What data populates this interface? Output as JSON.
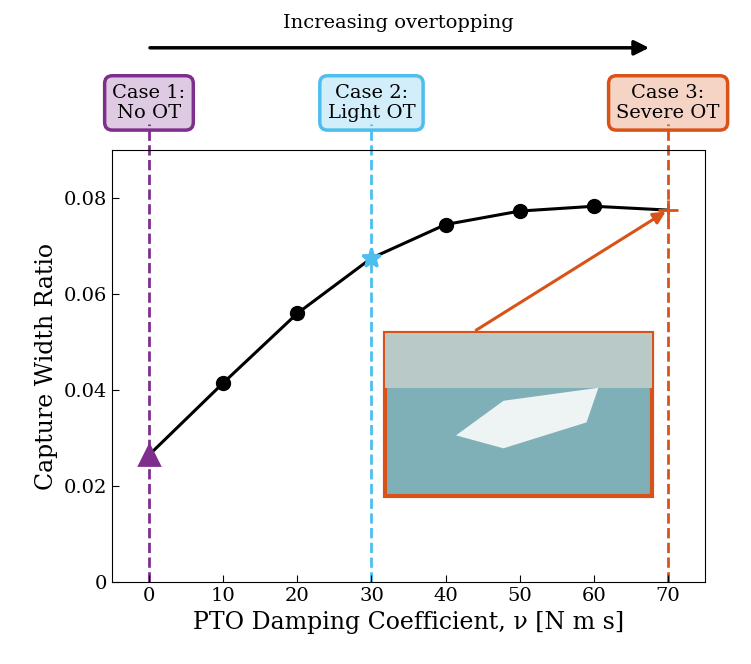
{
  "chart_data": {
    "type": "line",
    "header": "Increasing overtopping",
    "xlabel": "PTO Damping Coefficient, ν [N m s]",
    "ylabel": "Capture Width Ratio",
    "x": [
      0,
      10,
      20,
      30,
      40,
      50,
      60,
      70
    ],
    "values": [
      0.0265,
      0.0415,
      0.056,
      0.0675,
      0.0745,
      0.0773,
      0.0783,
      0.0775
    ],
    "color": "#000000",
    "marker": "circle",
    "line_style": "solid",
    "xlim": [
      -5,
      75
    ],
    "xticks": [
      0,
      10,
      20,
      30,
      40,
      50,
      60,
      70
    ],
    "ylim": [
      0,
      0.09
    ],
    "yticks": [
      0,
      0.02,
      0.04,
      0.06,
      0.08
    ],
    "grid": false,
    "cases": [
      {
        "label": "Case 1:\nNo OT",
        "x": 0,
        "color": "#7e2f8e",
        "marker": "triangle"
      },
      {
        "label": "Case 2:\nLight OT",
        "x": 30,
        "color": "#4dbeee",
        "marker": "star"
      },
      {
        "label": "Case 3:\nSevere OT",
        "x": 70,
        "color": "#d95319",
        "marker": "plus"
      }
    ]
  }
}
